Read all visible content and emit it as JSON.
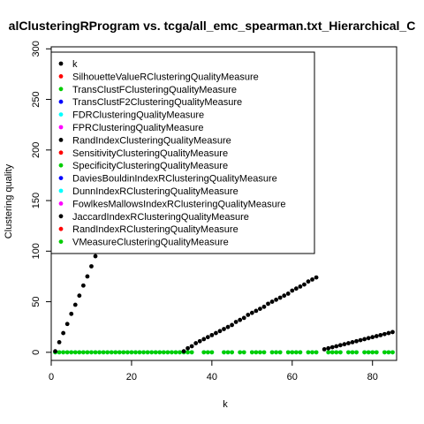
{
  "chart_data": {
    "type": "scatter",
    "title": "alClusteringRProgram vs. tcga/all_emc_spearman.txt_Hierarchical_C",
    "xlabel": "k",
    "ylabel": "Clustering quality",
    "xlim": [
      0,
      86
    ],
    "ylim": [
      -8,
      302
    ],
    "x_ticks": [
      0,
      20,
      40,
      60,
      80
    ],
    "y_ticks": [
      0,
      50,
      100,
      150,
      200,
      250,
      300
    ],
    "grid": false,
    "legend_position": "top-left",
    "series": [
      {
        "name": "k",
        "color": "#000000",
        "points": [
          [
            1,
            1
          ],
          [
            2,
            10
          ],
          [
            3,
            19
          ],
          [
            4,
            28
          ],
          [
            5,
            38
          ],
          [
            6,
            47
          ],
          [
            7,
            56
          ],
          [
            8,
            66
          ],
          [
            9,
            75
          ],
          [
            10,
            85
          ],
          [
            11,
            95
          ],
          [
            33,
            1
          ],
          [
            34,
            4
          ],
          [
            35,
            6
          ],
          [
            36,
            9
          ],
          [
            37,
            11
          ],
          [
            38,
            13
          ],
          [
            39,
            15
          ],
          [
            40,
            17
          ],
          [
            41,
            19
          ],
          [
            42,
            21
          ],
          [
            43,
            23
          ],
          [
            44,
            25
          ],
          [
            45,
            27
          ],
          [
            46,
            30
          ],
          [
            47,
            32
          ],
          [
            48,
            34
          ],
          [
            49,
            37
          ],
          [
            50,
            39
          ],
          [
            51,
            41
          ],
          [
            52,
            43
          ],
          [
            53,
            45
          ],
          [
            54,
            48
          ],
          [
            55,
            50
          ],
          [
            56,
            52
          ],
          [
            57,
            54
          ],
          [
            58,
            56
          ],
          [
            59,
            58
          ],
          [
            60,
            61
          ],
          [
            61,
            63
          ],
          [
            62,
            65
          ],
          [
            63,
            67
          ],
          [
            64,
            70
          ],
          [
            65,
            72
          ],
          [
            66,
            74
          ],
          [
            68,
            3
          ],
          [
            69,
            4
          ],
          [
            70,
            5
          ],
          [
            71,
            6
          ],
          [
            72,
            7
          ],
          [
            73,
            8
          ],
          [
            74,
            9
          ],
          [
            75,
            10
          ],
          [
            76,
            11
          ],
          [
            77,
            12
          ],
          [
            78,
            13
          ],
          [
            79,
            14
          ],
          [
            80,
            15
          ],
          [
            81,
            16
          ],
          [
            82,
            17
          ],
          [
            83,
            18
          ],
          [
            84,
            19
          ],
          [
            85,
            20
          ]
        ]
      },
      {
        "name": "SilhouetteValueRClusteringQualityMeasure",
        "color": "#ff0000",
        "points": []
      },
      {
        "name": "TransClustFClusteringQualityMeasure",
        "color": "#00cd00",
        "points": []
      },
      {
        "name": "TransClustF2ClusteringQualityMeasure",
        "color": "#0000ff",
        "points": []
      },
      {
        "name": "FDRClusteringQualityMeasure",
        "color": "#00ffff",
        "points": []
      },
      {
        "name": "FPRClusteringQualityMeasure",
        "color": "#ff00ff",
        "points": []
      },
      {
        "name": "RandIndexClusteringQualityMeasure",
        "color": "#000000",
        "points": []
      },
      {
        "name": "SensitivityClusteringQualityMeasure",
        "color": "#ff0000",
        "points": []
      },
      {
        "name": "SpecificityClusteringQualityMeasure",
        "color": "#00cd00",
        "points": []
      },
      {
        "name": "DaviesBouldinIndexRClusteringQualityMeasure",
        "color": "#0000ff",
        "points": []
      },
      {
        "name": "DunnIndexRClusteringQualityMeasure",
        "color": "#00ffff",
        "points": []
      },
      {
        "name": "FowlkesMallowsIndexRClusteringQualityMeasure",
        "color": "#ff00ff",
        "points": []
      },
      {
        "name": "JaccardIndexRClusteringQualityMeasure",
        "color": "#000000",
        "points": []
      },
      {
        "name": "RandIndexRClusteringQualityMeasure",
        "color": "#ff0000",
        "points": []
      },
      {
        "name": "VMeasureClusteringQualityMeasure",
        "color": "#00cd00",
        "points": []
      }
    ],
    "baseline_series_note_value": 0,
    "baseline_x": [
      1,
      2,
      3,
      4,
      5,
      6,
      7,
      8,
      9,
      10,
      11,
      12,
      13,
      14,
      15,
      16,
      17,
      18,
      19,
      20,
      21,
      22,
      23,
      24,
      25,
      26,
      27,
      28,
      29,
      30,
      31,
      32,
      33,
      34,
      35,
      36,
      37,
      38,
      39,
      40,
      41,
      42,
      43,
      44,
      45,
      46,
      47,
      48,
      49,
      50,
      51,
      52,
      53,
      54,
      55,
      56,
      57,
      58,
      59,
      60,
      61,
      62,
      63,
      64,
      65,
      66,
      67,
      68,
      69,
      70,
      71,
      72,
      73,
      74,
      75,
      76,
      77,
      78,
      79,
      80,
      81,
      82,
      83,
      84,
      85
    ],
    "baseline_present_x": [
      1,
      2,
      3,
      4,
      5,
      6,
      7,
      8,
      9,
      10,
      11,
      12,
      13,
      14,
      15,
      16,
      17,
      18,
      19,
      20,
      21,
      22,
      23,
      24,
      25,
      26,
      27,
      28,
      29,
      30,
      31,
      32,
      33,
      34,
      35,
      38,
      39,
      40,
      43,
      44,
      45,
      47,
      48,
      50,
      51,
      52,
      53,
      55,
      56,
      57,
      59,
      60,
      61,
      62,
      64,
      65,
      66,
      69,
      70,
      71,
      72,
      74,
      75,
      76,
      78,
      79,
      80,
      81,
      83,
      84,
      85
    ]
  }
}
